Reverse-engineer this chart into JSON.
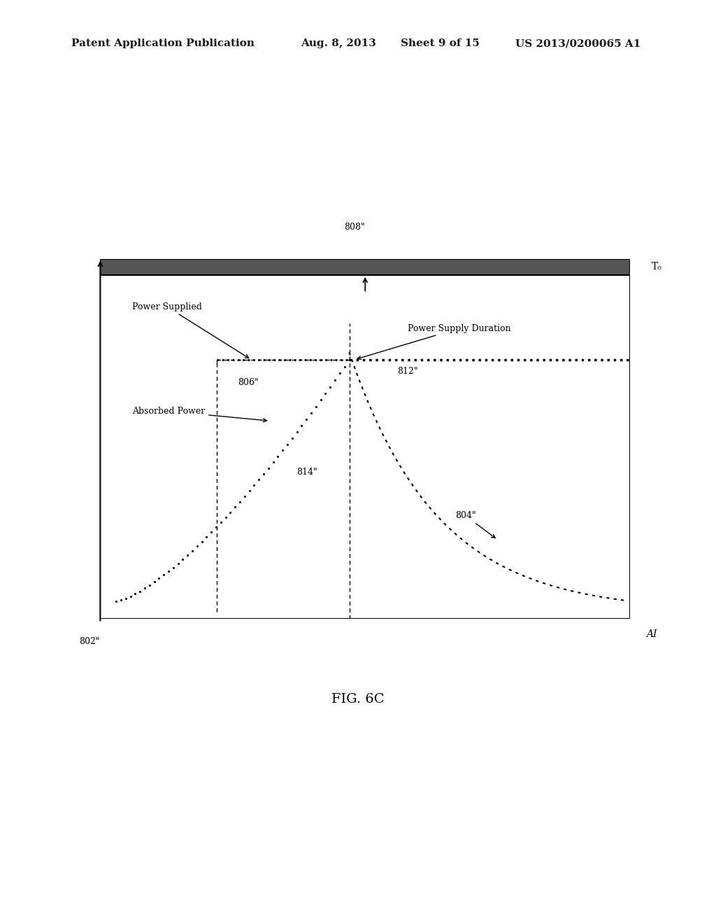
{
  "background_color": "#ffffff",
  "header_text": "Patent Application Publication",
  "header_date": "Aug. 8, 2013",
  "header_sheet": "Sheet 9 of 15",
  "header_patent": "US 2013/0200065 A1",
  "figure_label": "FIG. 6C",
  "labels": {
    "802": "802\"",
    "804": "804\"",
    "806": "806\"",
    "808": "808\"",
    "812": "812\"",
    "814": "814\"",
    "T0": "T₀",
    "AI": "AI",
    "power_supplied": "Power Supplied",
    "absorbed_power": "Absorbed Power",
    "power_supply_duration": "Power Supply Duration"
  }
}
